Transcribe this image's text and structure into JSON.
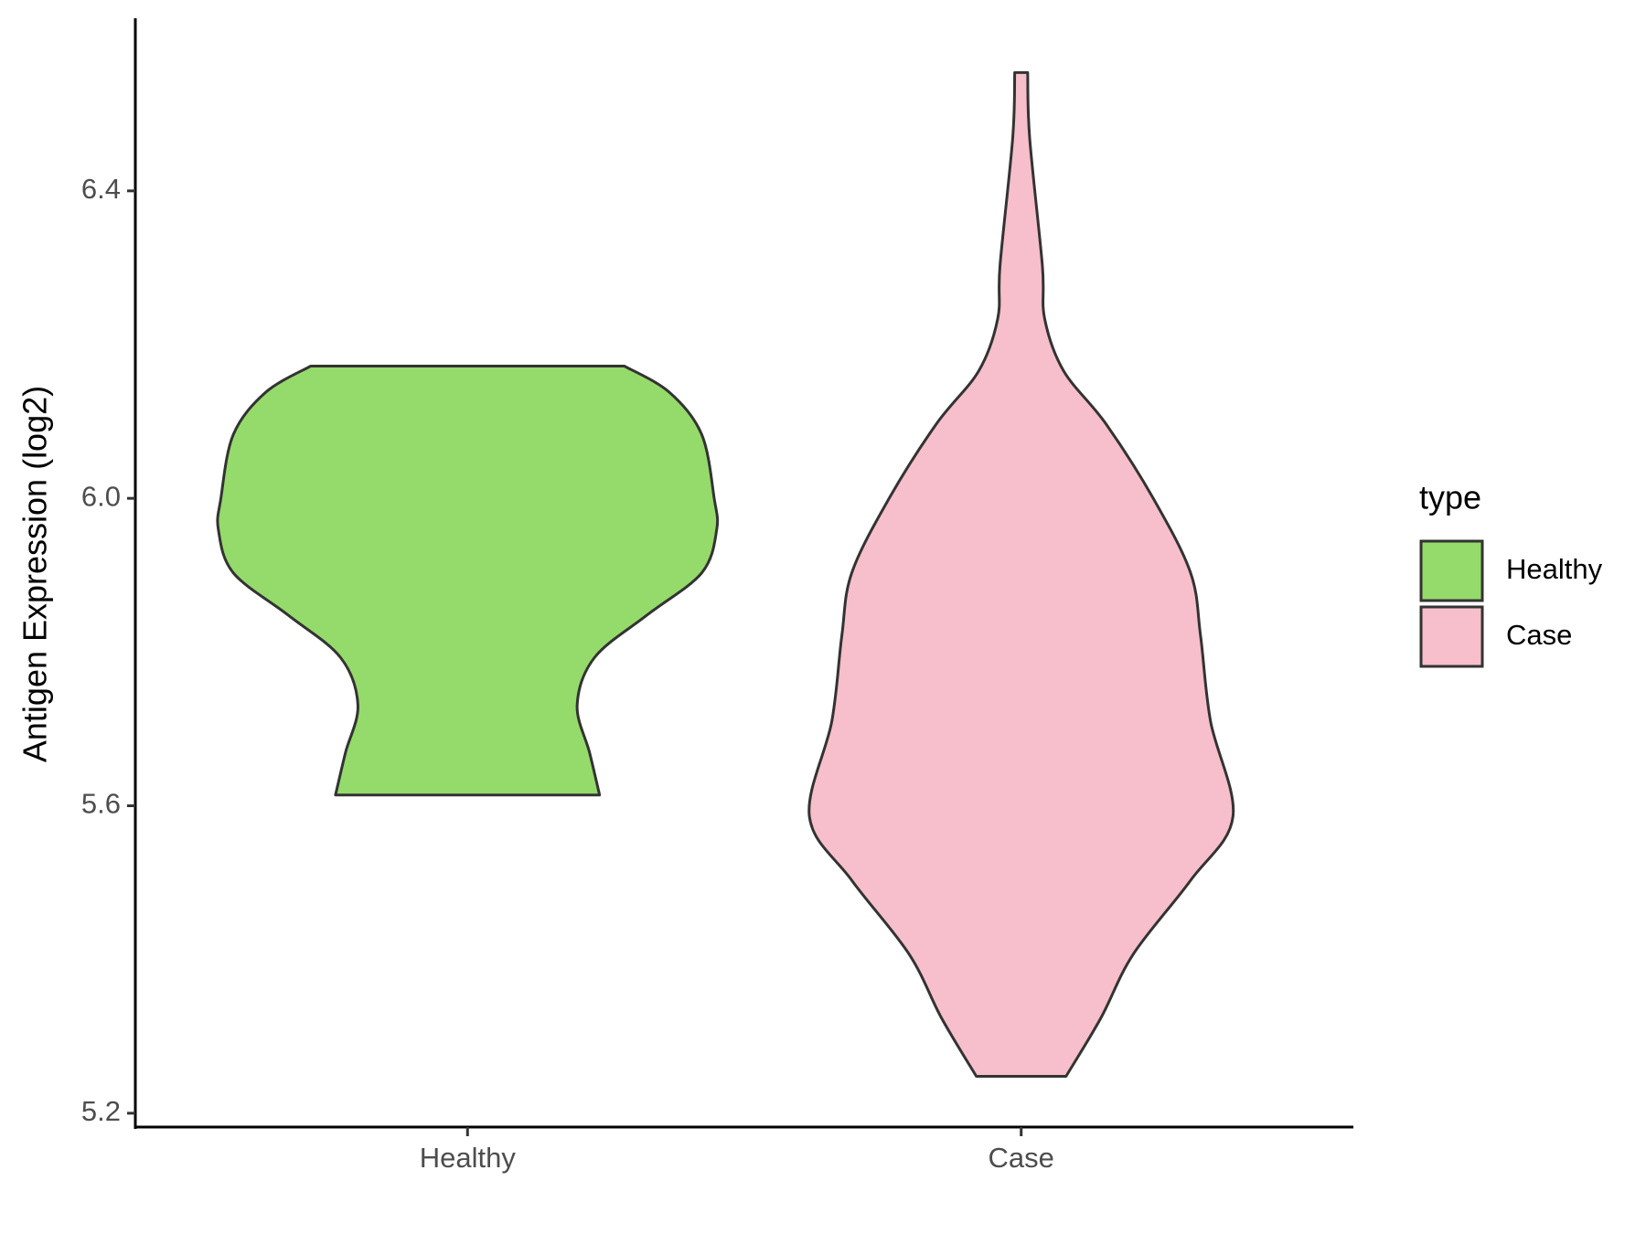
{
  "chart_data": {
    "type": "violin",
    "y_label": "Antigen Expression (log2)",
    "categories": [
      "Healthy",
      "Case"
    ],
    "series": [
      {
        "name": "Healthy",
        "color": "#95db6b",
        "y": [
          6.172,
          6.138,
          6.083,
          6.0,
          5.959,
          5.903,
          5.848,
          5.793,
          5.731,
          5.669,
          5.614
        ],
        "density": [
          0.63,
          0.81,
          0.94,
          0.99,
          1.0,
          0.94,
          0.72,
          0.51,
          0.44,
          0.49,
          0.53
        ]
      },
      {
        "name": "Case",
        "color": "#f7bfcb",
        "y": [
          6.554,
          6.469,
          6.303,
          6.234,
          6.166,
          6.097,
          6.0,
          5.903,
          5.821,
          5.71,
          5.586,
          5.503,
          5.407,
          5.324,
          5.248
        ],
        "density": [
          0.026,
          0.034,
          0.085,
          0.094,
          0.17,
          0.34,
          0.53,
          0.68,
          0.72,
          0.76,
          0.85,
          0.68,
          0.45,
          0.32,
          0.18
        ]
      }
    ],
    "ylim": [
      5.182,
      6.621
    ],
    "yticks": [
      {
        "value": 5.2,
        "label": "5.2"
      },
      {
        "value": 5.6,
        "label": "5.6"
      },
      {
        "value": 6.0,
        "label": "6.0"
      },
      {
        "value": 6.4,
        "label": "6.4"
      }
    ],
    "legend_title": "type",
    "legend_position": "right",
    "grid": false
  }
}
